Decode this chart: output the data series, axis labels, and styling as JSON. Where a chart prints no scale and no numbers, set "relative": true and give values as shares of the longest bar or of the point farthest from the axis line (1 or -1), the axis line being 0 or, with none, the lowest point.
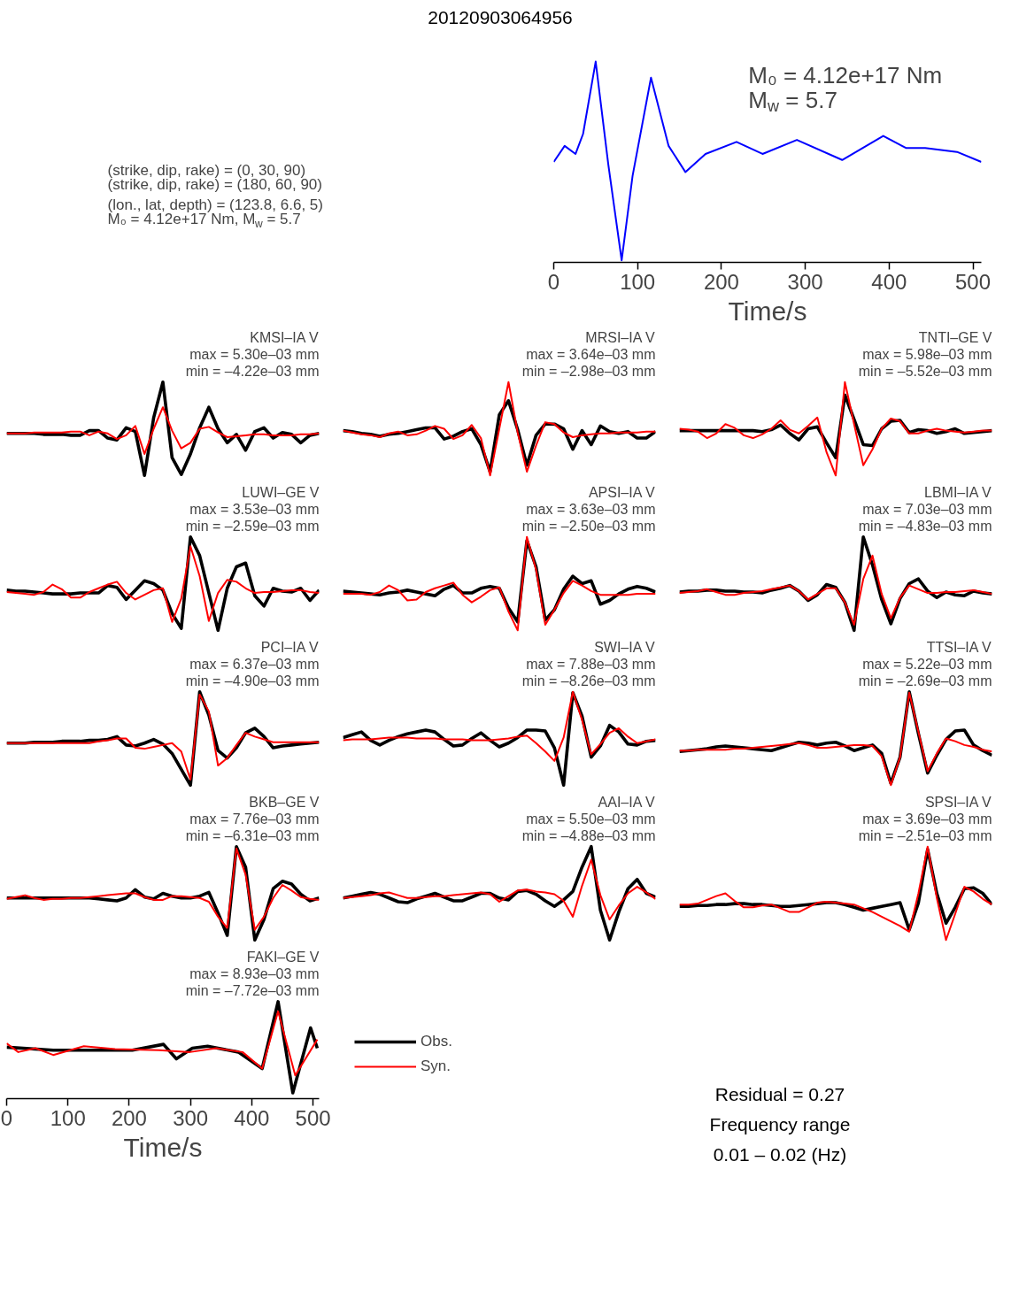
{
  "chart_data": [
    {
      "type": "line",
      "title": "20120903064956",
      "relative": true,
      "xlim": [
        0,
        510
      ],
      "xticks": [
        0,
        100,
        200,
        300,
        400,
        500
      ],
      "xlabel": "Time/s",
      "tick_labels": "x",
      "annotations": [
        "(strike, dip, rake) = (0, 30, 90)",
        "(strike, dip, rake) = (180, 60, 90)",
        "(lon., lat, depth) = (123.8, 6.6, 5)",
        "M₀ = 4.12e+17 Nm, M$_{w}$ = 5.7",
        "M₀ = 4.12e+17 Nm",
        "M$_{w}$ = 5.7"
      ],
      "series": [
        {
          "color": "#0000ff",
          "x": [
            0,
            13,
            26,
            35,
            50,
            65,
            81,
            94,
            116,
            137,
            157,
            181,
            218,
            249,
            290,
            344,
            393,
            420,
            443,
            481,
            510
          ],
          "values": [
            0.5,
            0.58,
            0.54,
            0.64,
            1.0,
            0.49,
            0.01,
            0.43,
            0.92,
            0.58,
            0.45,
            0.54,
            0.6,
            0.54,
            0.61,
            0.51,
            0.63,
            0.57,
            0.57,
            0.55,
            0.5
          ]
        }
      ]
    },
    {
      "type": "line",
      "title": "KMSI–IA V",
      "annotations": [
        "max = 5.30e–03 mm",
        "min = –4.22e–03 mm"
      ],
      "relative": true,
      "tick_labels": false,
      "categories": [
        null,
        null,
        null,
        null,
        null,
        null,
        null,
        null,
        null,
        null,
        null,
        null,
        null,
        null,
        null,
        null,
        null,
        null,
        null,
        null,
        null,
        null,
        null,
        null,
        null,
        null,
        null,
        null,
        null,
        null,
        null,
        null,
        null,
        null,
        null
      ],
      "series": [
        {
          "color": "#000000",
          "values": [
            0.45,
            0.45,
            0.45,
            0.45,
            0.44,
            0.44,
            0.44,
            0.43,
            0.43,
            0.48,
            0.48,
            0.4,
            0.38,
            0.51,
            0.47,
            0.0,
            0.62,
            1.0,
            0.19,
            0.01,
            0.23,
            0.51,
            0.73,
            0.5,
            0.35,
            0.44,
            0.27,
            0.47,
            0.51,
            0.4,
            0.46,
            0.44,
            0.35,
            0.43,
            0.45
          ]
        },
        {
          "color": "#ff0000",
          "values": [
            0.45,
            0.45,
            0.45,
            0.46,
            0.46,
            0.46,
            0.46,
            0.47,
            0.47,
            0.43,
            0.47,
            0.45,
            0.39,
            0.43,
            0.53,
            0.23,
            0.5,
            0.73,
            0.48,
            0.29,
            0.35,
            0.5,
            0.52,
            0.46,
            0.41,
            0.42,
            0.43,
            0.44,
            0.44,
            0.43,
            0.43,
            0.43,
            0.44,
            0.44,
            0.45
          ]
        }
      ]
    },
    {
      "type": "line",
      "title": "MRSI–IA V",
      "annotations": [
        "max = 3.64e–03 mm",
        "min = –2.98e–03 mm"
      ],
      "relative": true,
      "tick_labels": false,
      "categories": [
        null,
        null,
        null,
        null,
        null,
        null,
        null,
        null,
        null,
        null,
        null,
        null,
        null,
        null,
        null,
        null,
        null,
        null,
        null,
        null,
        null,
        null,
        null,
        null,
        null,
        null,
        null,
        null,
        null,
        null,
        null,
        null,
        null,
        null,
        null
      ],
      "series": [
        {
          "color": "#000000",
          "values": [
            0.48,
            0.47,
            0.45,
            0.44,
            0.42,
            0.44,
            0.45,
            0.47,
            0.49,
            0.51,
            0.51,
            0.39,
            0.42,
            0.47,
            0.5,
            0.33,
            0.04,
            0.65,
            0.8,
            0.49,
            0.11,
            0.43,
            0.55,
            0.55,
            0.5,
            0.28,
            0.48,
            0.33,
            0.53,
            0.47,
            0.45,
            0.47,
            0.4,
            0.4,
            0.47
          ]
        },
        {
          "color": "#ff0000",
          "values": [
            0.48,
            0.46,
            0.44,
            0.43,
            0.41,
            0.45,
            0.47,
            0.43,
            0.44,
            0.48,
            0.53,
            0.5,
            0.39,
            0.43,
            0.54,
            0.4,
            0.0,
            0.5,
            1.0,
            0.46,
            0.04,
            0.32,
            0.57,
            0.55,
            0.46,
            0.41,
            0.43,
            0.44,
            0.45,
            0.45,
            0.46,
            0.46,
            0.46,
            0.47,
            0.47
          ]
        }
      ]
    },
    {
      "type": "line",
      "title": "TNTI–GE V",
      "annotations": [
        "max = 5.98e–03 mm",
        "min = –5.52e–03 mm"
      ],
      "relative": true,
      "tick_labels": false,
      "categories": [
        null,
        null,
        null,
        null,
        null,
        null,
        null,
        null,
        null,
        null,
        null,
        null,
        null,
        null,
        null,
        null,
        null,
        null,
        null,
        null,
        null,
        null,
        null,
        null,
        null,
        null,
        null,
        null,
        null,
        null,
        null,
        null,
        null,
        null,
        null
      ],
      "series": [
        {
          "color": "#000000",
          "values": [
            0.48,
            0.48,
            0.48,
            0.48,
            0.48,
            0.48,
            0.48,
            0.48,
            0.48,
            0.47,
            0.49,
            0.54,
            0.45,
            0.38,
            0.5,
            0.52,
            0.35,
            0.19,
            0.86,
            0.6,
            0.33,
            0.32,
            0.5,
            0.58,
            0.59,
            0.46,
            0.49,
            0.48,
            0.45,
            0.47,
            0.5,
            0.45,
            0.46,
            0.47,
            0.48
          ]
        },
        {
          "color": "#ff0000",
          "values": [
            0.5,
            0.49,
            0.47,
            0.4,
            0.45,
            0.55,
            0.51,
            0.43,
            0.4,
            0.44,
            0.5,
            0.59,
            0.49,
            0.45,
            0.53,
            0.62,
            0.25,
            0.0,
            1.0,
            0.55,
            0.11,
            0.28,
            0.5,
            0.61,
            0.58,
            0.45,
            0.45,
            0.48,
            0.5,
            0.48,
            0.47,
            0.46,
            0.47,
            0.48,
            0.48
          ]
        }
      ]
    },
    {
      "type": "line",
      "title": "LUWI–GE V",
      "annotations": [
        "max = 3.53e–03 mm",
        "min = –2.59e–03 mm"
      ],
      "relative": true,
      "tick_labels": false,
      "categories": [
        null,
        null,
        null,
        null,
        null,
        null,
        null,
        null,
        null,
        null,
        null,
        null,
        null,
        null,
        null,
        null,
        null,
        null,
        null,
        null,
        null,
        null,
        null,
        null,
        null,
        null,
        null,
        null,
        null,
        null,
        null,
        null,
        null,
        null,
        null
      ],
      "series": [
        {
          "color": "#000000",
          "values": [
            0.43,
            0.42,
            0.42,
            0.41,
            0.4,
            0.39,
            0.39,
            0.39,
            0.4,
            0.4,
            0.4,
            0.48,
            0.46,
            0.33,
            0.43,
            0.53,
            0.5,
            0.43,
            0.18,
            0.02,
            1.0,
            0.8,
            0.4,
            0.0,
            0.45,
            0.68,
            0.72,
            0.37,
            0.26,
            0.45,
            0.42,
            0.41,
            0.45,
            0.32,
            0.43
          ]
        },
        {
          "color": "#ff0000",
          "values": [
            0.41,
            0.4,
            0.39,
            0.38,
            0.41,
            0.49,
            0.44,
            0.35,
            0.35,
            0.41,
            0.45,
            0.49,
            0.52,
            0.4,
            0.33,
            0.38,
            0.43,
            0.45,
            0.09,
            0.34,
            0.9,
            0.58,
            0.1,
            0.4,
            0.54,
            0.52,
            0.45,
            0.4,
            0.41,
            0.41,
            0.42,
            0.43,
            0.43,
            0.41,
            0.4
          ]
        }
      ]
    },
    {
      "type": "line",
      "title": "APSI–IA V",
      "annotations": [
        "max = 3.63e–03 mm",
        "min = –2.50e–03 mm"
      ],
      "relative": true,
      "tick_labels": false,
      "categories": [
        null,
        null,
        null,
        null,
        null,
        null,
        null,
        null,
        null,
        null,
        null,
        null,
        null,
        null,
        null,
        null,
        null,
        null,
        null,
        null,
        null,
        null,
        null,
        null,
        null,
        null,
        null,
        null,
        null,
        null,
        null,
        null,
        null,
        null,
        null
      ],
      "series": [
        {
          "color": "#000000",
          "values": [
            0.42,
            0.41,
            0.4,
            0.39,
            0.38,
            0.4,
            0.41,
            0.43,
            0.41,
            0.39,
            0.37,
            0.44,
            0.48,
            0.4,
            0.4,
            0.45,
            0.47,
            0.45,
            0.24,
            0.09,
            0.96,
            0.68,
            0.11,
            0.22,
            0.44,
            0.58,
            0.5,
            0.53,
            0.28,
            0.32,
            0.39,
            0.44,
            0.47,
            0.45,
            0.41
          ]
        },
        {
          "color": "#ff0000",
          "values": [
            0.39,
            0.39,
            0.39,
            0.38,
            0.41,
            0.48,
            0.43,
            0.32,
            0.33,
            0.41,
            0.45,
            0.48,
            0.51,
            0.38,
            0.3,
            0.36,
            0.43,
            0.46,
            0.2,
            0.0,
            1.0,
            0.65,
            0.06,
            0.22,
            0.4,
            0.53,
            0.48,
            0.42,
            0.38,
            0.38,
            0.38,
            0.38,
            0.39,
            0.39,
            0.39
          ]
        }
      ]
    },
    {
      "type": "line",
      "title": "LBMI–IA V",
      "annotations": [
        "max = 7.03e–03 mm",
        "min = –4.83e–03 mm"
      ],
      "relative": true,
      "tick_labels": false,
      "categories": [
        null,
        null,
        null,
        null,
        null,
        null,
        null,
        null,
        null,
        null,
        null,
        null,
        null,
        null,
        null,
        null,
        null,
        null,
        null,
        null,
        null,
        null,
        null,
        null,
        null,
        null,
        null,
        null,
        null,
        null,
        null,
        null,
        null,
        null,
        null
      ],
      "series": [
        {
          "color": "#000000",
          "values": [
            0.41,
            0.42,
            0.42,
            0.43,
            0.43,
            0.42,
            0.42,
            0.41,
            0.41,
            0.4,
            0.43,
            0.45,
            0.48,
            0.42,
            0.32,
            0.38,
            0.49,
            0.46,
            0.3,
            0.0,
            1.0,
            0.7,
            0.33,
            0.07,
            0.34,
            0.5,
            0.55,
            0.42,
            0.35,
            0.41,
            0.38,
            0.37,
            0.42,
            0.4,
            0.39
          ]
        },
        {
          "color": "#ff0000",
          "values": [
            0.4,
            0.41,
            0.42,
            0.44,
            0.41,
            0.38,
            0.38,
            0.4,
            0.41,
            0.42,
            0.44,
            0.46,
            0.48,
            0.42,
            0.33,
            0.39,
            0.45,
            0.45,
            0.3,
            0.06,
            0.55,
            0.8,
            0.39,
            0.13,
            0.35,
            0.48,
            0.44,
            0.4,
            0.4,
            0.41,
            0.41,
            0.42,
            0.43,
            0.41,
            0.39
          ]
        }
      ]
    },
    {
      "type": "line",
      "title": "PCI–IA V",
      "annotations": [
        "max = 6.37e–03 mm",
        "min = –4.90e–03 mm"
      ],
      "relative": true,
      "tick_labels": false,
      "categories": [
        null,
        null,
        null,
        null,
        null,
        null,
        null,
        null,
        null,
        null,
        null,
        null,
        null,
        null,
        null,
        null,
        null,
        null,
        null,
        null,
        null,
        null,
        null,
        null,
        null,
        null,
        null,
        null,
        null,
        null,
        null,
        null,
        null,
        null,
        null
      ],
      "series": [
        {
          "color": "#000000",
          "values": [
            0.45,
            0.45,
            0.45,
            0.46,
            0.46,
            0.46,
            0.47,
            0.47,
            0.47,
            0.48,
            0.48,
            0.49,
            0.52,
            0.43,
            0.42,
            0.45,
            0.49,
            0.44,
            0.34,
            0.17,
            0.0,
            1.0,
            0.75,
            0.37,
            0.29,
            0.4,
            0.56,
            0.61,
            0.52,
            0.4,
            0.42,
            0.43,
            0.44,
            0.45,
            0.46
          ]
        },
        {
          "color": "#ff0000",
          "values": [
            0.45,
            0.45,
            0.45,
            0.45,
            0.45,
            0.45,
            0.45,
            0.45,
            0.45,
            0.45,
            0.47,
            0.48,
            0.5,
            0.5,
            0.4,
            0.39,
            0.41,
            0.43,
            0.45,
            0.36,
            0.06,
            0.97,
            0.79,
            0.21,
            0.29,
            0.43,
            0.56,
            0.52,
            0.49,
            0.46,
            0.46,
            0.46,
            0.46,
            0.46,
            0.46
          ]
        }
      ]
    },
    {
      "type": "line",
      "title": "SWI–IA V",
      "annotations": [
        "max = 7.88e–03 mm",
        "min = –8.26e–03 mm"
      ],
      "relative": true,
      "tick_labels": false,
      "categories": [
        null,
        null,
        null,
        null,
        null,
        null,
        null,
        null,
        null,
        null,
        null,
        null,
        null,
        null,
        null,
        null,
        null,
        null,
        null,
        null,
        null,
        null,
        null,
        null,
        null,
        null,
        null,
        null,
        null,
        null,
        null,
        null,
        null,
        null,
        null
      ],
      "series": [
        {
          "color": "#000000",
          "values": [
            0.51,
            0.54,
            0.57,
            0.48,
            0.43,
            0.48,
            0.52,
            0.55,
            0.57,
            0.59,
            0.57,
            0.49,
            0.42,
            0.43,
            0.5,
            0.56,
            0.48,
            0.41,
            0.45,
            0.51,
            0.59,
            0.59,
            0.58,
            0.4,
            0.0,
            0.99,
            0.74,
            0.3,
            0.42,
            0.64,
            0.57,
            0.44,
            0.43,
            0.47,
            0.48
          ]
        },
        {
          "color": "#ff0000",
          "values": [
            0.48,
            0.49,
            0.49,
            0.49,
            0.5,
            0.51,
            0.51,
            0.51,
            0.5,
            0.5,
            0.5,
            0.49,
            0.49,
            0.49,
            0.48,
            0.48,
            0.48,
            0.49,
            0.5,
            0.52,
            0.53,
            0.45,
            0.36,
            0.26,
            0.51,
            1.0,
            0.7,
            0.33,
            0.44,
            0.56,
            0.61,
            0.52,
            0.45,
            0.47,
            0.49
          ]
        }
      ]
    },
    {
      "type": "line",
      "title": "TTSI–IA V",
      "annotations": [
        "max = 5.22e–03 mm",
        "min = –2.69e–03 mm"
      ],
      "relative": true,
      "tick_labels": false,
      "categories": [
        null,
        null,
        null,
        null,
        null,
        null,
        null,
        null,
        null,
        null,
        null,
        null,
        null,
        null,
        null,
        null,
        null,
        null,
        null,
        null,
        null,
        null,
        null,
        null,
        null,
        null,
        null,
        null,
        null,
        null,
        null,
        null,
        null,
        null,
        null
      ],
      "series": [
        {
          "color": "#000000",
          "values": [
            0.36,
            0.37,
            0.38,
            0.39,
            0.41,
            0.42,
            0.41,
            0.4,
            0.39,
            0.38,
            0.37,
            0.4,
            0.43,
            0.46,
            0.45,
            0.43,
            0.45,
            0.46,
            0.42,
            0.37,
            0.4,
            0.43,
            0.34,
            0.02,
            0.3,
            1.0,
            0.55,
            0.13,
            0.32,
            0.49,
            0.58,
            0.59,
            0.43,
            0.37,
            0.32
          ]
        },
        {
          "color": "#ff0000",
          "values": [
            0.37,
            0.37,
            0.38,
            0.38,
            0.38,
            0.38,
            0.39,
            0.39,
            0.4,
            0.41,
            0.42,
            0.43,
            0.44,
            0.45,
            0.43,
            0.4,
            0.4,
            0.41,
            0.42,
            0.43,
            0.43,
            0.42,
            0.31,
            0.0,
            0.3,
            0.99,
            0.57,
            0.15,
            0.34,
            0.5,
            0.47,
            0.43,
            0.41,
            0.38,
            0.36
          ]
        }
      ]
    },
    {
      "type": "line",
      "title": "BKB–GE V",
      "annotations": [
        "max = 7.76e–03 mm",
        "min = –6.31e–03 mm"
      ],
      "relative": true,
      "tick_labels": false,
      "categories": [
        null,
        null,
        null,
        null,
        null,
        null,
        null,
        null,
        null,
        null,
        null,
        null,
        null,
        null,
        null,
        null,
        null,
        null,
        null,
        null,
        null,
        null,
        null,
        null,
        null,
        null,
        null,
        null,
        null,
        null,
        null,
        null,
        null,
        null,
        null
      ],
      "series": [
        {
          "color": "#000000",
          "values": [
            0.45,
            0.45,
            0.45,
            0.45,
            0.45,
            0.45,
            0.45,
            0.45,
            0.45,
            0.45,
            0.44,
            0.43,
            0.42,
            0.45,
            0.54,
            0.46,
            0.44,
            0.5,
            0.47,
            0.45,
            0.45,
            0.47,
            0.51,
            0.29,
            0.05,
            1.0,
            0.78,
            0.0,
            0.22,
            0.55,
            0.63,
            0.6,
            0.49,
            0.42,
            0.45
          ]
        },
        {
          "color": "#ff0000",
          "values": [
            0.44,
            0.46,
            0.48,
            0.45,
            0.43,
            0.44,
            0.44,
            0.45,
            0.45,
            0.46,
            0.47,
            0.48,
            0.49,
            0.5,
            0.5,
            0.46,
            0.43,
            0.43,
            0.47,
            0.47,
            0.46,
            0.45,
            0.41,
            0.25,
            0.13,
            0.98,
            0.7,
            0.11,
            0.25,
            0.45,
            0.59,
            0.53,
            0.46,
            0.44,
            0.43
          ]
        }
      ]
    },
    {
      "type": "line",
      "title": "AAI–IA V",
      "annotations": [
        "max = 5.50e–03 mm",
        "min = –4.88e–03 mm"
      ],
      "relative": true,
      "tick_labels": false,
      "categories": [
        null,
        null,
        null,
        null,
        null,
        null,
        null,
        null,
        null,
        null,
        null,
        null,
        null,
        null,
        null,
        null,
        null,
        null,
        null,
        null,
        null,
        null,
        null,
        null,
        null,
        null,
        null,
        null,
        null,
        null,
        null,
        null,
        null,
        null,
        null
      ],
      "series": [
        {
          "color": "#000000",
          "values": [
            0.45,
            0.47,
            0.49,
            0.51,
            0.49,
            0.45,
            0.41,
            0.4,
            0.44,
            0.47,
            0.5,
            0.46,
            0.42,
            0.42,
            0.46,
            0.5,
            0.5,
            0.45,
            0.43,
            0.52,
            0.53,
            0.49,
            0.42,
            0.36,
            0.43,
            0.52,
            0.78,
            1.0,
            0.32,
            0.0,
            0.3,
            0.55,
            0.65,
            0.5,
            0.46
          ]
        },
        {
          "color": "#ff0000",
          "values": [
            0.45,
            0.46,
            0.47,
            0.48,
            0.5,
            0.51,
            0.48,
            0.45,
            0.45,
            0.46,
            0.47,
            0.47,
            0.48,
            0.49,
            0.5,
            0.51,
            0.49,
            0.41,
            0.47,
            0.53,
            0.54,
            0.52,
            0.51,
            0.49,
            0.42,
            0.25,
            0.58,
            0.86,
            0.48,
            0.22,
            0.37,
            0.5,
            0.57,
            0.51,
            0.44
          ]
        }
      ]
    },
    {
      "type": "line",
      "title": "SPSI–IA V",
      "annotations": [
        "max = 3.69e–03 mm",
        "min = –2.51e–03 mm"
      ],
      "relative": true,
      "tick_labels": false,
      "categories": [
        null,
        null,
        null,
        null,
        null,
        null,
        null,
        null,
        null,
        null,
        null,
        null,
        null,
        null,
        null,
        null,
        null,
        null,
        null,
        null,
        null,
        null,
        null,
        null,
        null,
        null,
        null,
        null,
        null,
        null,
        null,
        null,
        null,
        null,
        null
      ],
      "series": [
        {
          "color": "#000000",
          "values": [
            0.36,
            0.36,
            0.37,
            0.37,
            0.38,
            0.38,
            0.39,
            0.39,
            0.38,
            0.38,
            0.37,
            0.36,
            0.36,
            0.37,
            0.38,
            0.39,
            0.4,
            0.4,
            0.38,
            0.35,
            0.32,
            0.34,
            0.36,
            0.38,
            0.4,
            0.11,
            0.4,
            0.97,
            0.5,
            0.18,
            0.35,
            0.55,
            0.56,
            0.5,
            0.38
          ]
        },
        {
          "color": "#ff0000",
          "values": [
            0.38,
            0.38,
            0.39,
            0.43,
            0.47,
            0.5,
            0.42,
            0.35,
            0.35,
            0.37,
            0.38,
            0.34,
            0.3,
            0.3,
            0.35,
            0.4,
            0.41,
            0.4,
            0.39,
            0.38,
            0.34,
            0.3,
            0.25,
            0.2,
            0.15,
            0.09,
            0.5,
            1.0,
            0.45,
            0.0,
            0.28,
            0.57,
            0.52,
            0.44,
            0.38
          ]
        }
      ]
    },
    {
      "type": "line",
      "title": "FAKI–GE V",
      "annotations": [
        "max = 8.93e–03 mm",
        "min = –7.72e–03 mm",
        "Residual = 0.27",
        "Frequency range",
        "0.01 – 0.02 (Hz)"
      ],
      "relative": true,
      "xlim": [
        0,
        510
      ],
      "xticks": [
        0,
        100,
        200,
        300,
        400,
        500
      ],
      "xlabel": "Time/s",
      "tick_labels": "x",
      "legend": "right",
      "series": [
        {
          "name": "Obs.",
          "color": "#000000",
          "x": [
            0,
            76,
            205,
            256,
            277,
            303,
            328,
            378,
            417,
            443,
            467,
            496,
            507
          ],
          "values": [
            0.53,
            0.5,
            0.5,
            0.56,
            0.41,
            0.52,
            0.54,
            0.48,
            0.31,
            1.0,
            0.06,
            0.73,
            0.52
          ]
        },
        {
          "name": "Syn.",
          "color": "#ff0000",
          "x": [
            0,
            19,
            47,
            76,
            126,
            177,
            249,
            299,
            342,
            385,
            417,
            443,
            471,
            507
          ],
          "values": [
            0.57,
            0.48,
            0.52,
            0.45,
            0.54,
            0.51,
            0.5,
            0.48,
            0.52,
            0.48,
            0.31,
            0.9,
            0.24,
            0.61
          ]
        }
      ]
    }
  ]
}
